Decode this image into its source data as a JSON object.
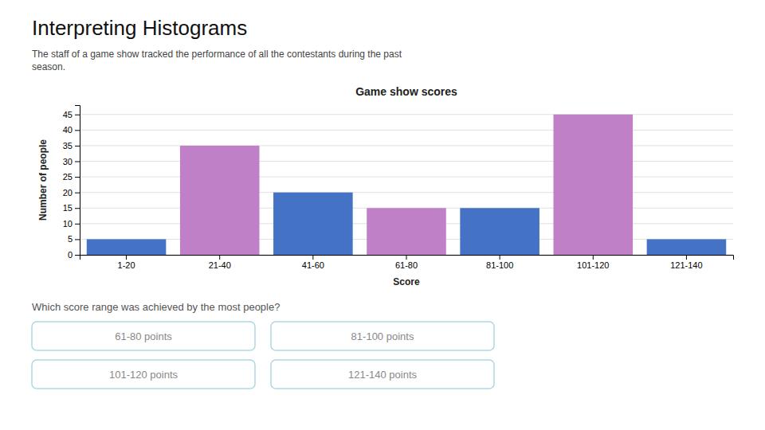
{
  "title": "Interpreting Histograms",
  "description": "The staff of a game show tracked the performance of all the contestants during the past\nseason.",
  "question": "Which score range was achieved by the most people?",
  "options": [
    "61-80 points",
    "81-100 points",
    "101-120 points",
    "121-140 points"
  ],
  "chart_data": {
    "type": "bar",
    "title": "Game show scores",
    "xlabel": "Score",
    "ylabel": "Number of people",
    "categories": [
      "1-20",
      "21-40",
      "41-60",
      "61-80",
      "81-100",
      "101-120",
      "121-140"
    ],
    "values": [
      5,
      35,
      20,
      15,
      15,
      45,
      5
    ],
    "colors": [
      "#4472C4",
      "#C080C8",
      "#4472C4",
      "#C080C8",
      "#4472C4",
      "#C080C8",
      "#4472C4"
    ],
    "ylim": [
      0,
      48
    ],
    "yticks": [
      0,
      5,
      10,
      15,
      20,
      25,
      30,
      35,
      40,
      45
    ],
    "grid": true
  }
}
